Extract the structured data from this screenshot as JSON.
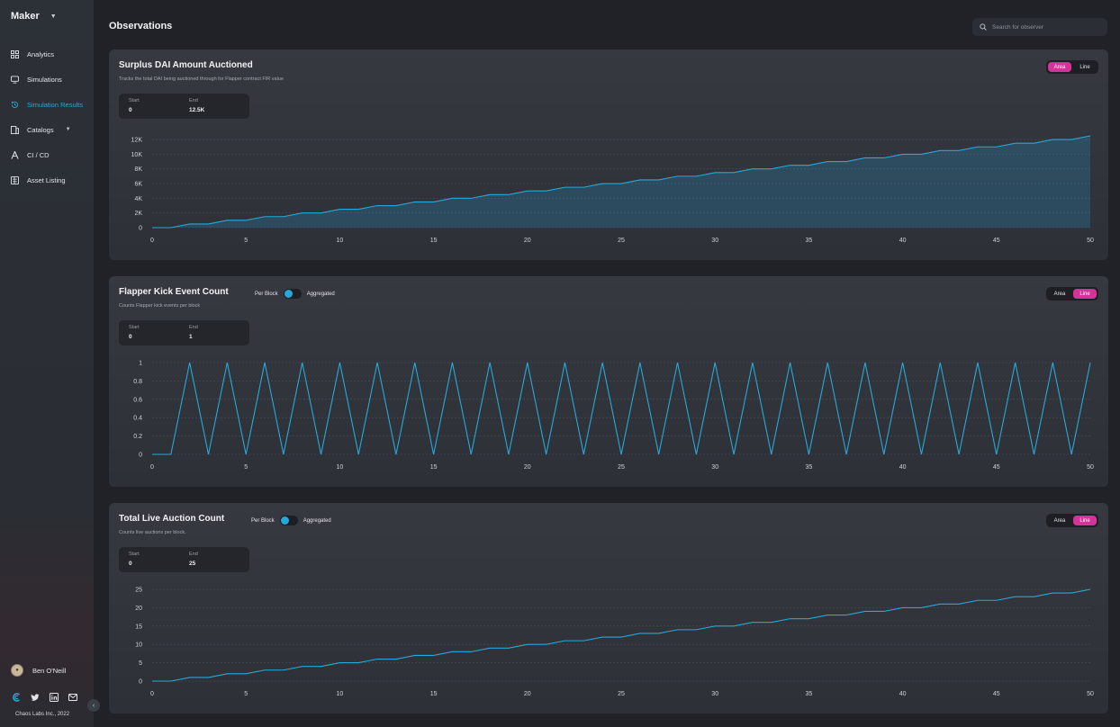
{
  "app": {
    "brand": "Maker"
  },
  "page": {
    "title": "Observations"
  },
  "search": {
    "placeholder": "Search for observer"
  },
  "sidebar": {
    "items": [
      {
        "label": "Analytics",
        "icon": "grid-icon"
      },
      {
        "label": "Simulations",
        "icon": "monitor-icon"
      },
      {
        "label": "Simulation Results",
        "icon": "history-icon",
        "active": true
      },
      {
        "label": "Catalogs",
        "icon": "catalog-icon",
        "has_submenu": true
      },
      {
        "label": "CI / CD",
        "icon": "ci-icon"
      },
      {
        "label": "Asset Listing",
        "icon": "list-icon"
      }
    ]
  },
  "user": {
    "name": "Ben O'Neill"
  },
  "footer": {
    "copyright": "Chaos Labs Inc., 2022"
  },
  "colors": {
    "accent": "#27a8d8",
    "toggle_active": "#d6339a",
    "background": "#202227"
  },
  "cards": [
    {
      "title": "Surplus DAI Amount Auctioned",
      "subtitle": "Tracks the total DAI being auctioned through for Flapper contract FIR value",
      "view_options": [
        "Area",
        "Line"
      ],
      "selected_view": "Area",
      "stats": {
        "start_label": "Start",
        "start_value": "0",
        "end_label": "End",
        "end_value": "12.5K"
      }
    },
    {
      "title": "Flapper Kick Event Count",
      "subtitle": "Counts Flapper kick events per block",
      "toggle": {
        "left": "Per Block",
        "right": "Aggregated"
      },
      "view_options": [
        "Area",
        "Line"
      ],
      "selected_view": "Line",
      "stats": {
        "start_label": "Start",
        "start_value": "0",
        "end_label": "End",
        "end_value": "1"
      }
    },
    {
      "title": "Total Live Auction Count",
      "subtitle": "Counts live auctions per block.",
      "toggle": {
        "left": "Per Block",
        "right": "Aggregated"
      },
      "view_options": [
        "Area",
        "Line"
      ],
      "selected_view": "Line",
      "stats": {
        "start_label": "Start",
        "start_value": "0",
        "end_label": "End",
        "end_value": "25"
      }
    }
  ],
  "chart_data": [
    {
      "type": "area",
      "x_ticks": [
        "0",
        "5",
        "10",
        "15",
        "20",
        "25",
        "30",
        "35",
        "40",
        "45",
        "50"
      ],
      "y_ticks": [
        "0",
        "2K",
        "4K",
        "6K",
        "8K",
        "10K",
        "12K"
      ],
      "ylim": [
        0,
        12500
      ],
      "xlim": [
        0,
        50
      ],
      "grid": true,
      "x": [
        0,
        1,
        2,
        3,
        4,
        5,
        6,
        7,
        8,
        9,
        10,
        11,
        12,
        13,
        14,
        15,
        16,
        17,
        18,
        19,
        20,
        21,
        22,
        23,
        24,
        25,
        26,
        27,
        28,
        29,
        30,
        31,
        32,
        33,
        34,
        35,
        36,
        37,
        38,
        39,
        40,
        41,
        42,
        43,
        44,
        45,
        46,
        47,
        48,
        49,
        50
      ],
      "values": [
        0,
        0,
        500,
        500,
        1000,
        1000,
        1500,
        1500,
        2000,
        2000,
        2500,
        2500,
        3000,
        3000,
        3500,
        3500,
        4000,
        4000,
        4500,
        4500,
        5000,
        5000,
        5500,
        5500,
        6000,
        6000,
        6500,
        6500,
        7000,
        7000,
        7500,
        7500,
        8000,
        8000,
        8500,
        8500,
        9000,
        9000,
        9500,
        9500,
        10000,
        10000,
        10500,
        10500,
        11000,
        11000,
        11500,
        11500,
        12000,
        12000,
        12500
      ],
      "color": "#27a8d8"
    },
    {
      "type": "line",
      "x_ticks": [
        "0",
        "5",
        "10",
        "15",
        "20",
        "25",
        "30",
        "35",
        "40",
        "45",
        "50"
      ],
      "y_ticks": [
        "0",
        "0.2",
        "0.4",
        "0.6",
        "0.8",
        "1"
      ],
      "ylim": [
        0,
        1
      ],
      "xlim": [
        0,
        50
      ],
      "grid": true,
      "x": [
        0,
        1,
        2,
        3,
        4,
        5,
        6,
        7,
        8,
        9,
        10,
        11,
        12,
        13,
        14,
        15,
        16,
        17,
        18,
        19,
        20,
        21,
        22,
        23,
        24,
        25,
        26,
        27,
        28,
        29,
        30,
        31,
        32,
        33,
        34,
        35,
        36,
        37,
        38,
        39,
        40,
        41,
        42,
        43,
        44,
        45,
        46,
        47,
        48,
        49,
        50
      ],
      "values": [
        0,
        0,
        1,
        0,
        1,
        0,
        1,
        0,
        1,
        0,
        1,
        0,
        1,
        0,
        1,
        0,
        1,
        0,
        1,
        0,
        1,
        0,
        1,
        0,
        1,
        0,
        1,
        0,
        1,
        0,
        1,
        0,
        1,
        0,
        1,
        0,
        1,
        0,
        1,
        0,
        1,
        0,
        1,
        0,
        1,
        0,
        1,
        0,
        1,
        0,
        1
      ],
      "color": "#27a8d8"
    },
    {
      "type": "line",
      "x_ticks": [
        "0",
        "5",
        "10",
        "15",
        "20",
        "25",
        "30",
        "35",
        "40",
        "45",
        "50"
      ],
      "y_ticks": [
        "0",
        "5",
        "10",
        "15",
        "20",
        "25"
      ],
      "ylim": [
        0,
        25
      ],
      "xlim": [
        0,
        50
      ],
      "grid": true,
      "x": [
        0,
        1,
        2,
        3,
        4,
        5,
        6,
        7,
        8,
        9,
        10,
        11,
        12,
        13,
        14,
        15,
        16,
        17,
        18,
        19,
        20,
        21,
        22,
        23,
        24,
        25,
        26,
        27,
        28,
        29,
        30,
        31,
        32,
        33,
        34,
        35,
        36,
        37,
        38,
        39,
        40,
        41,
        42,
        43,
        44,
        45,
        46,
        47,
        48,
        49,
        50
      ],
      "values": [
        0,
        0,
        1,
        1,
        2,
        2,
        3,
        3,
        4,
        4,
        5,
        5,
        6,
        6,
        7,
        7,
        8,
        8,
        9,
        9,
        10,
        10,
        11,
        11,
        12,
        12,
        13,
        13,
        14,
        14,
        15,
        15,
        16,
        16,
        17,
        17,
        18,
        18,
        19,
        19,
        20,
        20,
        21,
        21,
        22,
        22,
        23,
        23,
        24,
        24,
        25
      ],
      "color": "#27a8d8"
    }
  ]
}
